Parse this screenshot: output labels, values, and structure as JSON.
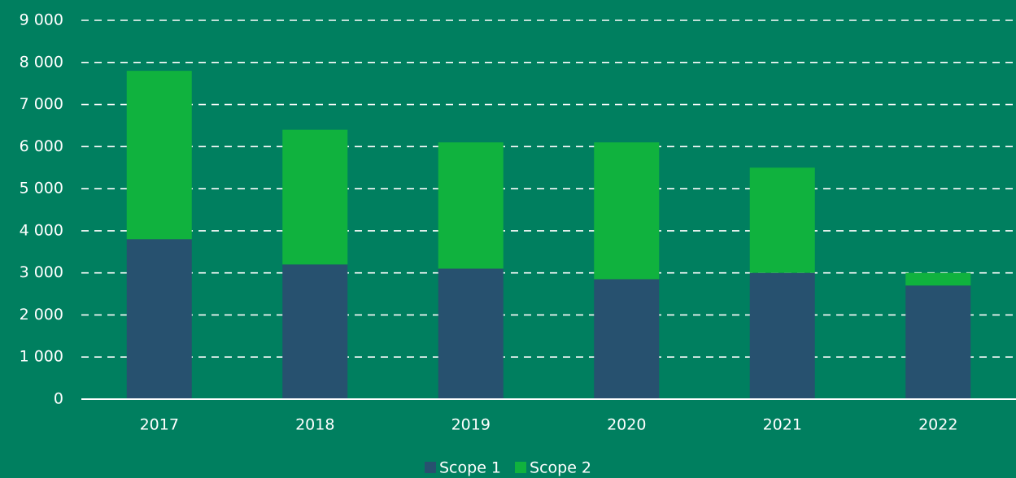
{
  "chart_data": {
    "type": "stacked_bar",
    "categories": [
      "2017",
      "2018",
      "2019",
      "2020",
      "2021",
      "2022"
    ],
    "series": [
      {
        "name": "Scope 1",
        "color": "#27516f",
        "values": [
          3800,
          3200,
          3100,
          2850,
          3000,
          2700
        ]
      },
      {
        "name": "Scope 2",
        "color": "#10b23e",
        "values": [
          4000,
          3200,
          3000,
          3250,
          2500,
          300
        ]
      }
    ],
    "ylim": [
      0,
      9000
    ],
    "yticks": [
      0,
      {
        "value": 1000,
        "label": "1 000"
      },
      {
        "value": 2000,
        "label": "2 000"
      },
      {
        "value": 3000,
        "label": "3 000"
      },
      {
        "value": 4000,
        "label": "4 000"
      },
      {
        "value": 5000,
        "label": "5 000"
      },
      {
        "value": 6000,
        "label": "6 000"
      },
      {
        "value": 7000,
        "label": "7 000"
      },
      {
        "value": 8000,
        "label": "8 000"
      },
      {
        "value": 9000,
        "label": "9 000"
      }
    ],
    "grid": true
  }
}
